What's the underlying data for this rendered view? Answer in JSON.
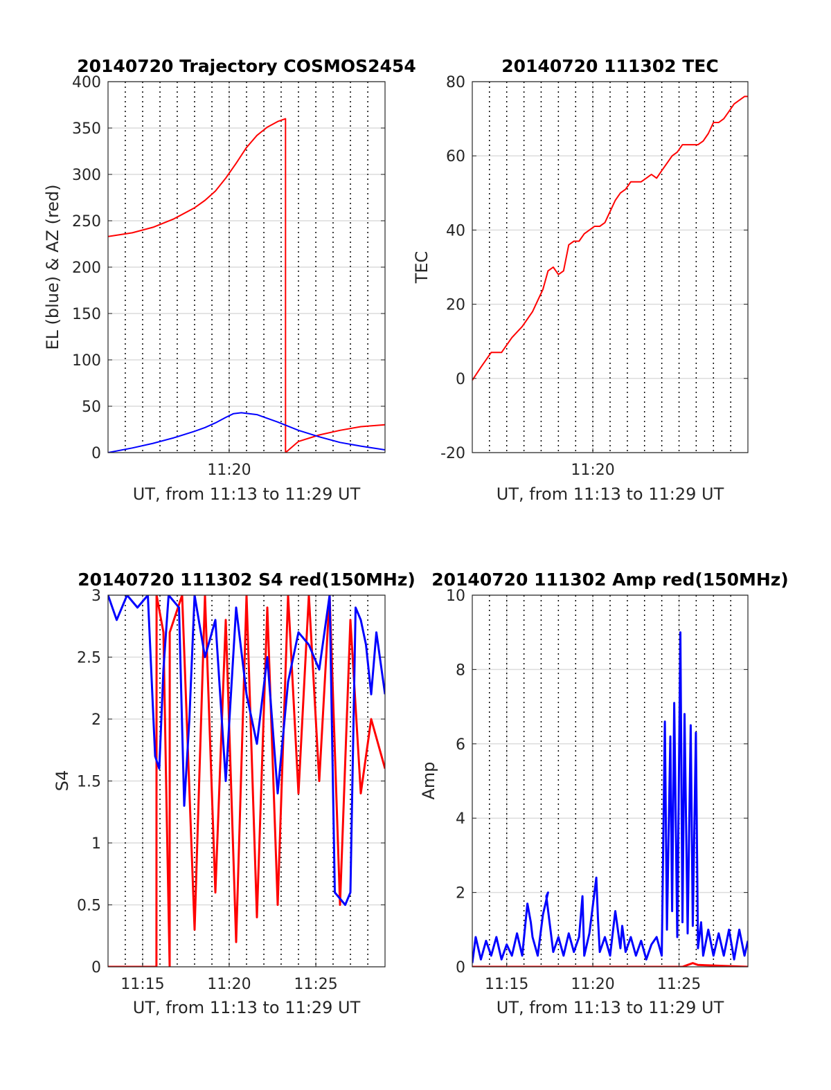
{
  "chart_data": [
    {
      "id": "traj",
      "type": "line",
      "title": "20140720 Trajectory COSMOS2454",
      "xlabel": "UT, from 11:13 to 11:29 UT",
      "ylabel": "EL (blue) & AZ (red)",
      "xlim": [
        11.2167,
        11.4833
      ],
      "ylim": [
        0,
        400
      ],
      "yticks": [
        0,
        50,
        100,
        150,
        200,
        250,
        300,
        350,
        400
      ],
      "xticks": [
        {
          "value": 11.3333,
          "label": "11:20"
        }
      ],
      "x_minor_grid": [
        11.2333,
        11.25,
        11.2667,
        11.2833,
        11.3,
        11.3167,
        11.35,
        11.3667,
        11.3833,
        11.4,
        11.4167,
        11.4333,
        11.45,
        11.4667
      ],
      "grid": true,
      "series": [
        {
          "color": "#ff0000",
          "x": [
            11.2167,
            11.24,
            11.26,
            11.28,
            11.3,
            11.31,
            11.32,
            11.33,
            11.34,
            11.35,
            11.36,
            11.37,
            11.38,
            11.3875,
            11.38751,
            11.4,
            11.42,
            11.44,
            11.46,
            11.4833
          ],
          "values": [
            233,
            237,
            243,
            252,
            264,
            272,
            282,
            296,
            312,
            329,
            342,
            351,
            357,
            360,
            0,
            12,
            19,
            24,
            28,
            30
          ]
        },
        {
          "color": "#0000ff",
          "x": [
            11.2167,
            11.24,
            11.26,
            11.28,
            11.3,
            11.31,
            11.32,
            11.33,
            11.3375,
            11.345,
            11.36,
            11.38,
            11.4,
            11.42,
            11.44,
            11.46,
            11.4833
          ],
          "values": [
            0,
            5,
            10,
            16,
            23,
            27,
            32,
            38,
            42,
            43,
            41,
            33,
            24,
            17,
            11,
            7,
            3
          ]
        }
      ]
    },
    {
      "id": "tec",
      "type": "line",
      "title": "20140720 111302 TEC",
      "xlabel": "UT, from 11:13 to 11:29 UT",
      "ylabel": "TEC",
      "xlim": [
        11.2167,
        11.4833
      ],
      "ylim": [
        -20,
        80
      ],
      "yticks": [
        -20,
        0,
        20,
        40,
        60,
        80
      ],
      "xticks": [
        {
          "value": 11.3333,
          "label": "11:20"
        }
      ],
      "x_minor_grid": [
        11.2333,
        11.25,
        11.2667,
        11.2833,
        11.3,
        11.3167,
        11.35,
        11.3667,
        11.3833,
        11.4,
        11.4167,
        11.4333,
        11.45,
        11.4667
      ],
      "grid": true,
      "series": [
        {
          "color": "#ff0000",
          "x": [
            11.2167,
            11.225,
            11.235,
            11.245,
            11.255,
            11.265,
            11.275,
            11.28,
            11.285,
            11.29,
            11.295,
            11.3,
            11.305,
            11.31,
            11.315,
            11.32,
            11.325,
            11.33,
            11.335,
            11.34,
            11.345,
            11.35,
            11.355,
            11.36,
            11.365,
            11.37,
            11.375,
            11.38,
            11.385,
            11.39,
            11.395,
            11.4,
            11.405,
            11.41,
            11.415,
            11.42,
            11.425,
            11.43,
            11.435,
            11.44,
            11.445,
            11.45,
            11.455,
            11.46,
            11.465,
            11.47,
            11.475,
            11.48,
            11.4833
          ],
          "values": [
            -0.5,
            3,
            7,
            7,
            11,
            14,
            18,
            21,
            24,
            29,
            30,
            28,
            29,
            36,
            37,
            37,
            39,
            40,
            41,
            41,
            42,
            45,
            48,
            50,
            51,
            53,
            53,
            53,
            54,
            55,
            54,
            56,
            58,
            60,
            61,
            63,
            63,
            63,
            63,
            64,
            66,
            69,
            69,
            70,
            72,
            74,
            75,
            76,
            76
          ]
        }
      ]
    },
    {
      "id": "s4",
      "type": "line",
      "title": "20140720 111302 S4 red(150MHz)",
      "xlabel": "UT, from 11:13 to 11:29 UT",
      "ylabel": "S4",
      "xlim": [
        11.2167,
        11.4833
      ],
      "ylim": [
        0,
        3
      ],
      "yticks": [
        {
          "value": 0,
          "label": "0"
        },
        {
          "value": 0.5,
          "label": "0.5"
        },
        {
          "value": 1,
          "label": "1"
        },
        {
          "value": 1.5,
          "label": "1.5"
        },
        {
          "value": 2,
          "label": "2"
        },
        {
          "value": 2.5,
          "label": "2.5"
        },
        {
          "value": 3,
          "label": "3"
        }
      ],
      "xticks": [
        {
          "value": 11.25,
          "label": "11:15"
        },
        {
          "value": 11.3333,
          "label": "11:20"
        },
        {
          "value": 11.4167,
          "label": "11:25"
        }
      ],
      "x_minor_grid": [
        11.2333,
        11.2667,
        11.2833,
        11.3,
        11.3167,
        11.35,
        11.3667,
        11.3833,
        11.4,
        11.4333,
        11.45,
        11.4667
      ],
      "grid": true,
      "series": [
        {
          "color": "#ff0000",
          "x": [
            11.2167,
            11.22,
            11.23,
            11.24,
            11.25,
            11.2633,
            11.2634,
            11.27,
            11.273,
            11.276,
            11.2761,
            11.288,
            11.3,
            11.31,
            11.32,
            11.33,
            11.34,
            11.35,
            11.36,
            11.37,
            11.38,
            11.39,
            11.4,
            11.41,
            11.42,
            11.43,
            11.44,
            11.45,
            11.46,
            11.47,
            11.4833
          ],
          "values": [
            0,
            0,
            0,
            0,
            0,
            0,
            3,
            2.7,
            1.3,
            0,
            2.7,
            3,
            0.3,
            3,
            0.6,
            2.8,
            0.2,
            3,
            0.4,
            2.9,
            0.5,
            3,
            1.4,
            3,
            1.5,
            3,
            0.5,
            2.8,
            1.4,
            2.0,
            1.6
          ]
        },
        {
          "color": "#0000ff",
          "x": [
            11.2167,
            11.225,
            11.235,
            11.245,
            11.255,
            11.262,
            11.266,
            11.27,
            11.275,
            11.285,
            11.29,
            11.295,
            11.3,
            11.31,
            11.32,
            11.33,
            11.34,
            11.35,
            11.36,
            11.37,
            11.38,
            11.39,
            11.4,
            11.41,
            11.42,
            11.43,
            11.435,
            11.44,
            11.445,
            11.45,
            11.455,
            11.46,
            11.465,
            11.47,
            11.475,
            11.48,
            11.4833
          ],
          "values": [
            3,
            2.8,
            3,
            2.9,
            3,
            1.7,
            1.6,
            2.4,
            3,
            2.9,
            1.3,
            2.0,
            3,
            2.5,
            2.8,
            1.5,
            2.9,
            2.2,
            1.8,
            2.5,
            1.4,
            2.3,
            2.7,
            2.6,
            2.4,
            3,
            0.6,
            0.55,
            0.5,
            0.6,
            2.9,
            2.8,
            2.6,
            2.2,
            2.7,
            2.4,
            2.2
          ]
        }
      ]
    },
    {
      "id": "amp",
      "type": "line",
      "title": "20140720 111302 Amp red(150MHz)",
      "xlabel": "UT, from 11:13 to 11:29 UT",
      "ylabel": "Amp",
      "xlim": [
        11.2167,
        11.4833
      ],
      "ylim": [
        0,
        10
      ],
      "yticks": [
        0,
        2,
        4,
        6,
        8,
        10
      ],
      "xticks": [
        {
          "value": 11.25,
          "label": "11:15"
        },
        {
          "value": 11.3333,
          "label": "11:20"
        },
        {
          "value": 11.4167,
          "label": "11:25"
        }
      ],
      "x_minor_grid": [
        11.2333,
        11.2667,
        11.2833,
        11.3,
        11.3167,
        11.35,
        11.3667,
        11.3833,
        11.4,
        11.4333,
        11.45,
        11.4667
      ],
      "grid": true,
      "series": [
        {
          "color": "#ff0000",
          "x": [
            11.2167,
            11.42,
            11.425,
            11.43,
            11.435,
            11.4833
          ],
          "values": [
            0,
            0,
            0.05,
            0.1,
            0.05,
            0
          ]
        },
        {
          "color": "#0000ff",
          "x": [
            11.2167,
            11.22,
            11.225,
            11.23,
            11.235,
            11.24,
            11.245,
            11.25,
            11.255,
            11.26,
            11.265,
            11.27,
            11.2733,
            11.275,
            11.28,
            11.285,
            11.29,
            11.2883,
            11.295,
            11.3,
            11.305,
            11.31,
            11.315,
            11.32,
            11.3233,
            11.325,
            11.33,
            11.3367,
            11.3383,
            11.34,
            11.345,
            11.35,
            11.355,
            11.36,
            11.3617,
            11.365,
            11.37,
            11.375,
            11.38,
            11.385,
            11.39,
            11.395,
            11.4,
            11.403,
            11.405,
            11.4083,
            11.41,
            11.412,
            11.415,
            11.418,
            11.42,
            11.422,
            11.425,
            11.428,
            11.43,
            11.433,
            11.435,
            11.438,
            11.44,
            11.445,
            11.45,
            11.455,
            11.46,
            11.465,
            11.47,
            11.475,
            11.48,
            11.4833
          ],
          "values": [
            0.1,
            0.8,
            0.2,
            0.7,
            0.3,
            0.8,
            0.2,
            0.6,
            0.3,
            0.9,
            0.3,
            1.7,
            1.2,
            0.8,
            0.3,
            1.4,
            2.0,
            1.9,
            0.4,
            0.8,
            0.3,
            0.9,
            0.4,
            0.8,
            1.9,
            0.3,
            0.9,
            2.4,
            1.3,
            0.4,
            0.8,
            0.3,
            1.5,
            0.5,
            1.1,
            0.4,
            0.8,
            0.3,
            0.7,
            0.2,
            0.6,
            0.8,
            0.3,
            6.6,
            1.0,
            6.2,
            1.5,
            7.1,
            0.8,
            9.0,
            1.2,
            6.8,
            0.9,
            6.5,
            1.1,
            6.3,
            0.5,
            1.2,
            0.3,
            1.0,
            0.3,
            0.9,
            0.3,
            1.0,
            0.2,
            1.0,
            0.3,
            0.7
          ]
        }
      ]
    }
  ]
}
